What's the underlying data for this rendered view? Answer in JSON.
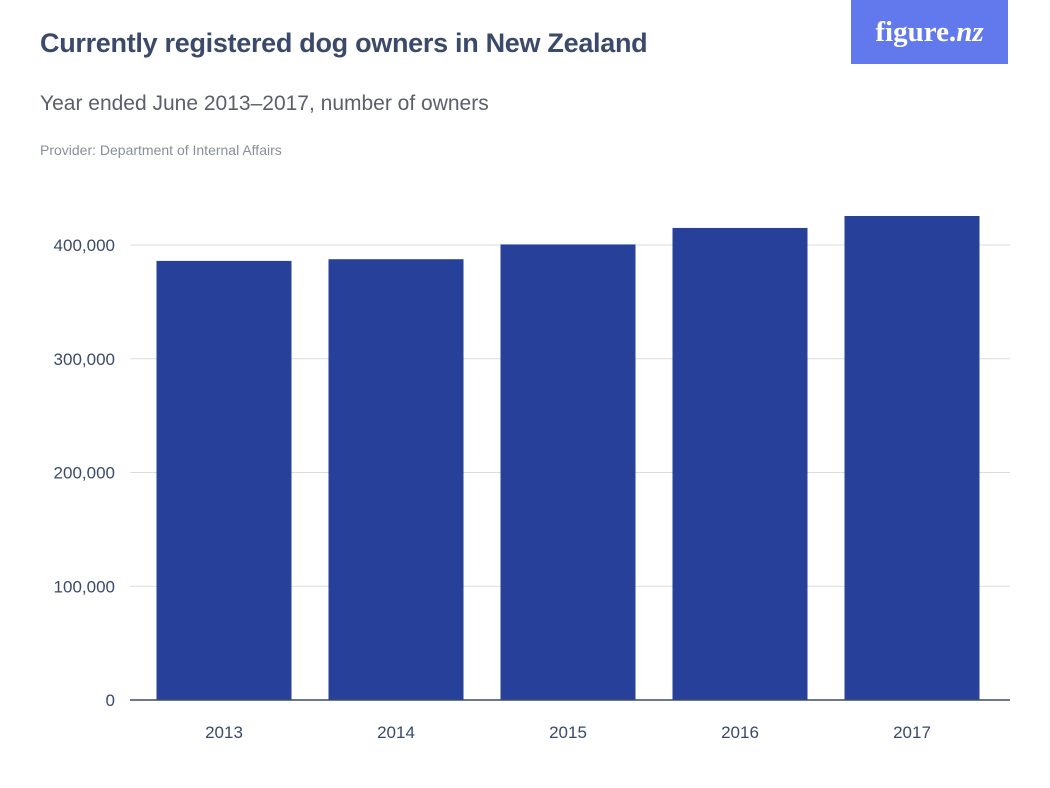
{
  "header": {
    "title": "Currently registered dog owners in New Zealand",
    "subtitle": "Year ended June 2013–2017, number of owners",
    "provider": "Provider: Department of Internal Affairs"
  },
  "logo": {
    "text_main": "figure.",
    "text_suffix": "nz",
    "bg_color": "#6279ee"
  },
  "chart_data": {
    "type": "bar",
    "categories": [
      "2013",
      "2014",
      "2015",
      "2016",
      "2017"
    ],
    "values": [
      386000,
      387500,
      400500,
      415000,
      425500
    ],
    "title": "Currently registered dog owners in New Zealand",
    "subtitle": "Year ended June 2013–2017, number of owners",
    "xlabel": "",
    "ylabel": "",
    "ylim": [
      0,
      425500
    ],
    "yticks": [
      0,
      100000,
      200000,
      300000,
      400000
    ],
    "ytick_labels": [
      "0",
      "100,000",
      "200,000",
      "300,000",
      "400,000"
    ],
    "grid": true,
    "bar_color": "#27419a"
  }
}
